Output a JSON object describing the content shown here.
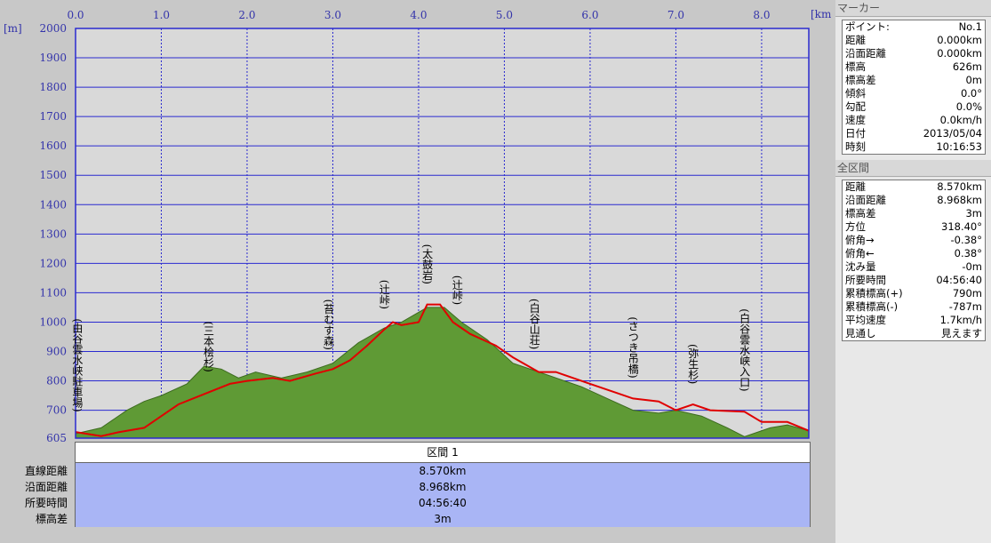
{
  "chart_data": {
    "type": "area-line",
    "ylabel": "[m]",
    "xlabel": "[km]",
    "xlim": [
      0,
      8.55
    ],
    "xticks": [
      {
        "value": 0,
        "label": "0.0"
      },
      {
        "value": 1,
        "label": "1.0"
      },
      {
        "value": 2,
        "label": "2.0"
      },
      {
        "value": 3,
        "label": "3.0"
      },
      {
        "value": 4,
        "label": "4.0"
      },
      {
        "value": 5,
        "label": "5.0"
      },
      {
        "value": 6,
        "label": "6.0"
      },
      {
        "value": 7,
        "label": "7.0"
      },
      {
        "value": 8,
        "label": "8.0"
      }
    ],
    "ylim": [
      605,
      2000
    ],
    "yticks": [
      605,
      700,
      800,
      900,
      1000,
      1100,
      1200,
      1300,
      1400,
      1500,
      1600,
      1700,
      1800,
      1900,
      2000
    ],
    "grid": true,
    "series": [
      {
        "color": "#5f9a35",
        "fill": true,
        "x": [
          0,
          0.3,
          0.6,
          0.8,
          1.0,
          1.3,
          1.5,
          1.7,
          1.9,
          2.1,
          2.4,
          2.7,
          3.0,
          3.3,
          3.6,
          3.8,
          4.1,
          4.3,
          4.5,
          4.8,
          5.1,
          5.5,
          5.9,
          6.2,
          6.5,
          6.8,
          7.0,
          7.3,
          7.6,
          7.8,
          8.1,
          8.3,
          8.55
        ],
        "values": [
          620,
          640,
          700,
          730,
          750,
          790,
          850,
          840,
          810,
          830,
          810,
          830,
          860,
          930,
          980,
          1000,
          1050,
          1050,
          1000,
          940,
          860,
          820,
          780,
          740,
          700,
          690,
          700,
          680,
          640,
          610,
          640,
          650,
          630
        ]
      },
      {
        "color": "#e00000",
        "fill": false,
        "x": [
          0,
          0.3,
          0.5,
          0.8,
          1.0,
          1.2,
          1.5,
          1.8,
          2.0,
          2.3,
          2.5,
          2.8,
          3.0,
          3.2,
          3.4,
          3.6,
          3.7,
          3.8,
          4.0,
          4.1,
          4.25,
          4.4,
          4.6,
          4.9,
          5.1,
          5.4,
          5.6,
          6.0,
          6.3,
          6.5,
          6.8,
          7.0,
          7.2,
          7.4,
          7.8,
          8.0,
          8.3,
          8.55
        ],
        "values": [
          626,
          612,
          625,
          640,
          680,
          720,
          755,
          790,
          800,
          810,
          800,
          825,
          840,
          870,
          920,
          975,
          1000,
          990,
          1000,
          1060,
          1060,
          1000,
          960,
          920,
          880,
          830,
          830,
          790,
          760,
          740,
          730,
          700,
          720,
          700,
          695,
          660,
          660,
          630
        ]
      }
    ],
    "annotations": [
      {
        "text": "(由谷雲水峡駐車場)",
        "x": 0.02
      },
      {
        "text": "(三本桧杉)",
        "x": 1.55
      },
      {
        "text": "(苔むす森)",
        "x": 2.95
      },
      {
        "text": "(辻峠)",
        "x": 3.6
      },
      {
        "text": "(太鼓岩)",
        "x": 4.1
      },
      {
        "text": "(辻峠)",
        "x": 4.45
      },
      {
        "text": "(白谷山荘)",
        "x": 5.35
      },
      {
        "text": "(さつき吊橋)",
        "x": 6.5
      },
      {
        "text": "(弥生杉)",
        "x": 7.2
      },
      {
        "text": "(白谷雲水峡入口)",
        "x": 7.8
      }
    ]
  },
  "section_table": {
    "header": "区間 1",
    "rows": [
      [
        "直線距離",
        "8.570km"
      ],
      [
        "沿面距離",
        "8.968km"
      ],
      [
        "所要時間",
        "04:56:40"
      ],
      [
        "標高差",
        "3m"
      ]
    ]
  },
  "marker_panel": {
    "title": "マーカー",
    "rows": [
      [
        "ポイント:",
        "No.1"
      ],
      [
        "距離",
        "0.000km"
      ],
      [
        "沿面距離",
        "0.000km"
      ],
      [
        "標高",
        "626m"
      ],
      [
        "標高差",
        "0m"
      ],
      [
        "傾斜",
        "0.0°"
      ],
      [
        "勾配",
        "0.0%"
      ],
      [
        "速度",
        "0.0km/h"
      ],
      [
        "日付",
        "2013/05/04"
      ],
      [
        "時刻",
        "10:16:53"
      ]
    ]
  },
  "total_panel": {
    "title": "全区間",
    "rows": [
      [
        "距離",
        "8.570km"
      ],
      [
        "沿面距離",
        "8.968km"
      ],
      [
        "標高差",
        "3m"
      ],
      [
        "方位",
        "318.40°"
      ],
      [
        "俯角→",
        "-0.38°"
      ],
      [
        "俯角←",
        "0.38°"
      ],
      [
        "沈み量",
        "-0m"
      ],
      [
        "所要時間",
        "04:56:40"
      ],
      [
        "累積標高(+)",
        "790m"
      ],
      [
        "累積標高(-)",
        "-787m"
      ],
      [
        "平均速度",
        "1.7km/h"
      ],
      [
        "見通し",
        "見えます"
      ]
    ]
  }
}
